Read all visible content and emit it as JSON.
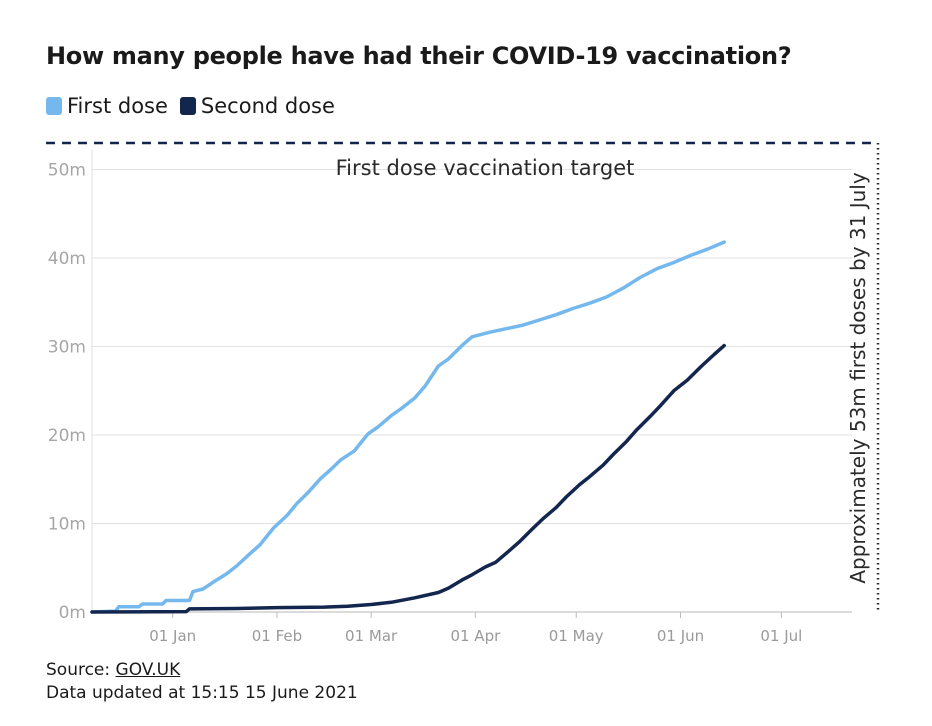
{
  "title": "How many people have had their COVID-19 vaccination?",
  "legend": {
    "first": {
      "label": "First dose",
      "color": "#74b8ee"
    },
    "second": {
      "label": "Second dose",
      "color": "#13264d"
    }
  },
  "source": {
    "prefix": "Source: ",
    "link": "GOV.UK"
  },
  "updated": "Data updated at 15:15 15 June 2021",
  "chart_data": {
    "type": "line",
    "title": "How many people have had their COVID-19 vaccination?",
    "xlabel": "",
    "ylabel": "",
    "x_range": [
      "2020-12-08",
      "2021-07-22"
    ],
    "ylim": [
      0,
      53
    ],
    "y_ticks": [
      0,
      10,
      20,
      30,
      40,
      50
    ],
    "y_tick_labels": [
      "0m",
      "10m",
      "20m",
      "30m",
      "40m",
      "50m"
    ],
    "x_ticks": [
      "2021-01-01",
      "2021-02-01",
      "2021-03-01",
      "2021-04-01",
      "2021-05-01",
      "2021-06-01",
      "2021-07-01"
    ],
    "x_tick_labels": [
      "01 Jan",
      "01 Feb",
      "01 Mar",
      "01 Apr",
      "01 May",
      "01 Jun",
      "01 Jul"
    ],
    "grid": true,
    "target": {
      "value": 53,
      "label": "First dose vaccination target"
    },
    "deadline": {
      "date": "2021-07-31",
      "label": "Approximately 53m first doses by 31 July"
    },
    "series": [
      {
        "name": "First dose",
        "color": "#74b8ee",
        "points": [
          [
            "2020-12-08",
            0
          ],
          [
            "2020-12-15",
            0.1
          ],
          [
            "2020-12-16",
            0.6
          ],
          [
            "2020-12-22",
            0.6
          ],
          [
            "2020-12-23",
            0.9
          ],
          [
            "2020-12-29",
            0.9
          ],
          [
            "2020-12-30",
            1.3
          ],
          [
            "2021-01-06",
            1.3
          ],
          [
            "2021-01-07",
            2.3
          ],
          [
            "2021-01-10",
            2.6
          ],
          [
            "2021-01-14",
            3.6
          ],
          [
            "2021-01-17",
            4.3
          ],
          [
            "2021-01-20",
            5.2
          ],
          [
            "2021-01-24",
            6.6
          ],
          [
            "2021-01-27",
            7.6
          ],
          [
            "2021-01-31",
            9.5
          ],
          [
            "2021-02-04",
            10.9
          ],
          [
            "2021-02-07",
            12.3
          ],
          [
            "2021-02-10",
            13.4
          ],
          [
            "2021-02-14",
            15.1
          ],
          [
            "2021-02-17",
            16.1
          ],
          [
            "2021-02-20",
            17.2
          ],
          [
            "2021-02-24",
            18.2
          ],
          [
            "2021-02-28",
            20.1
          ],
          [
            "2021-03-03",
            20.9
          ],
          [
            "2021-03-07",
            22.2
          ],
          [
            "2021-03-10",
            23.0
          ],
          [
            "2021-03-14",
            24.2
          ],
          [
            "2021-03-17",
            25.5
          ],
          [
            "2021-03-21",
            27.8
          ],
          [
            "2021-03-24",
            28.6
          ],
          [
            "2021-03-28",
            30.1
          ],
          [
            "2021-03-31",
            31.1
          ],
          [
            "2021-04-05",
            31.6
          ],
          [
            "2021-04-10",
            32.0
          ],
          [
            "2021-04-15",
            32.4
          ],
          [
            "2021-04-20",
            33.0
          ],
          [
            "2021-04-25",
            33.6
          ],
          [
            "2021-04-30",
            34.3
          ],
          [
            "2021-05-05",
            34.9
          ],
          [
            "2021-05-10",
            35.6
          ],
          [
            "2021-05-15",
            36.6
          ],
          [
            "2021-05-20",
            37.8
          ],
          [
            "2021-05-25",
            38.8
          ],
          [
            "2021-05-30",
            39.5
          ],
          [
            "2021-06-04",
            40.3
          ],
          [
            "2021-06-09",
            41.0
          ],
          [
            "2021-06-14",
            41.8
          ]
        ]
      },
      {
        "name": "Second dose",
        "color": "#13264d",
        "points": [
          [
            "2020-12-08",
            0
          ],
          [
            "2021-01-05",
            0.05
          ],
          [
            "2021-01-06",
            0.35
          ],
          [
            "2021-01-20",
            0.4
          ],
          [
            "2021-02-01",
            0.5
          ],
          [
            "2021-02-15",
            0.55
          ],
          [
            "2021-02-22",
            0.65
          ],
          [
            "2021-03-01",
            0.85
          ],
          [
            "2021-03-07",
            1.1
          ],
          [
            "2021-03-14",
            1.6
          ],
          [
            "2021-03-21",
            2.2
          ],
          [
            "2021-03-24",
            2.7
          ],
          [
            "2021-03-28",
            3.6
          ],
          [
            "2021-03-31",
            4.2
          ],
          [
            "2021-04-04",
            5.1
          ],
          [
            "2021-04-07",
            5.6
          ],
          [
            "2021-04-11",
            6.9
          ],
          [
            "2021-04-14",
            7.9
          ],
          [
            "2021-04-18",
            9.4
          ],
          [
            "2021-04-21",
            10.5
          ],
          [
            "2021-04-25",
            11.8
          ],
          [
            "2021-04-28",
            13.0
          ],
          [
            "2021-05-02",
            14.4
          ],
          [
            "2021-05-05",
            15.3
          ],
          [
            "2021-05-09",
            16.6
          ],
          [
            "2021-05-12",
            17.8
          ],
          [
            "2021-05-16",
            19.3
          ],
          [
            "2021-05-19",
            20.6
          ],
          [
            "2021-05-23",
            22.1
          ],
          [
            "2021-05-26",
            23.3
          ],
          [
            "2021-05-30",
            25.0
          ],
          [
            "2021-06-03",
            26.2
          ],
          [
            "2021-06-07",
            27.7
          ],
          [
            "2021-06-11",
            29.1
          ],
          [
            "2021-06-14",
            30.1
          ]
        ]
      }
    ]
  }
}
